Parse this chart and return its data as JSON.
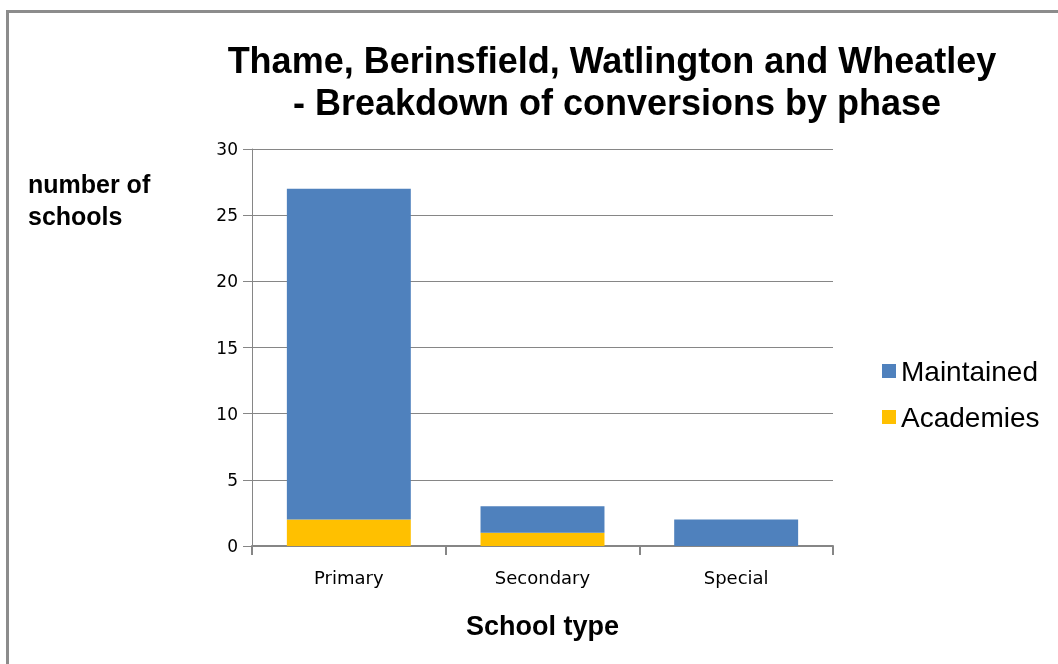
{
  "chart_data": {
    "type": "bar",
    "title": "Thame, Berinsfield, Watlington and Wheatley - Breakdown of conversions by phase",
    "xlabel": "School type",
    "ylabel": "number of schools",
    "categories": [
      "Primary",
      "Secondary",
      "Special"
    ],
    "series": [
      {
        "name": "Academies",
        "color": "#ffc000",
        "values": [
          2,
          1,
          0
        ]
      },
      {
        "name": "Maintained",
        "color": "#4f81bd",
        "values": [
          25,
          2,
          2
        ]
      }
    ],
    "stacked": true,
    "ylim": [
      0,
      30
    ],
    "yticks": [
      0,
      5,
      10,
      15,
      20,
      25,
      30
    ],
    "grid": "y",
    "legend": "right"
  }
}
